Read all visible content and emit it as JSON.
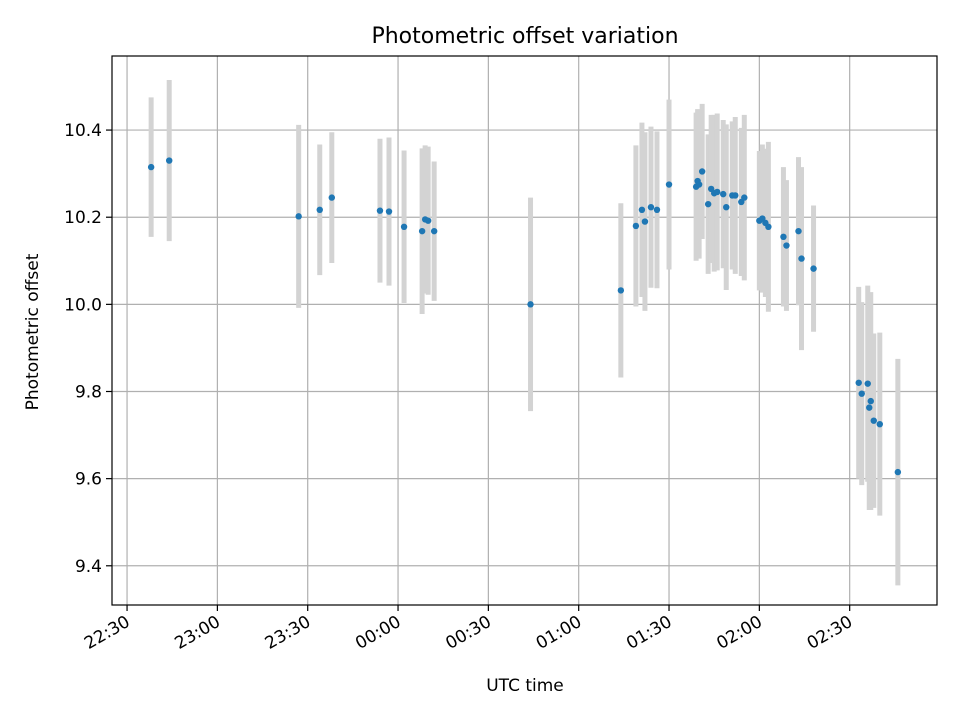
{
  "chart_data": {
    "type": "scatter",
    "title": "Photometric offset variation",
    "xlabel": "UTC time",
    "ylabel": "Photometric offset",
    "x_tick_labels": [
      "22:30",
      "23:00",
      "23:30",
      "00:00",
      "00:30",
      "01:00",
      "01:30",
      "02:00",
      "02:30"
    ],
    "y_ticks": [
      9.4,
      9.6,
      9.8,
      10.0,
      10.2,
      10.4
    ],
    "y_tick_labels": [
      "9.4",
      "9.6",
      "9.8",
      "10.0",
      "10.2",
      "10.4"
    ],
    "xlim": [
      "22:25",
      "02:59"
    ],
    "ylim": [
      9.31,
      10.57
    ],
    "grid": true,
    "colors": {
      "point": "#1f77b4",
      "errorbar": "#d3d3d3",
      "grid": "#b0b0b0",
      "axes": "#000000"
    },
    "series": [
      {
        "x": [
          "22:38",
          "22:44",
          "23:27",
          "23:34",
          "23:38",
          "23:54",
          "23:57",
          "00:02",
          "00:08",
          "00:09",
          "00:10",
          "00:12",
          "00:44",
          "01:14",
          "01:19",
          "01:21",
          "01:22",
          "01:24",
          "01:26",
          "01:30",
          "01:39",
          "01:39.5",
          "01:40",
          "01:41",
          "01:43",
          "01:44",
          "01:45",
          "01:46",
          "01:48",
          "01:49",
          "01:51",
          "01:52",
          "01:54",
          "01:55",
          "02:00",
          "02:01",
          "02:02",
          "02:03",
          "02:08",
          "02:09",
          "02:13",
          "02:14",
          "02:18",
          "02:33",
          "02:34",
          "02:36",
          "02:36.5",
          "02:37",
          "02:38",
          "02:40",
          "02:46"
        ],
        "y": [
          10.315,
          10.33,
          10.202,
          10.217,
          10.245,
          10.215,
          10.213,
          10.178,
          10.168,
          10.195,
          10.192,
          10.168,
          10.0,
          10.032,
          10.18,
          10.217,
          10.19,
          10.223,
          10.217,
          10.275,
          10.27,
          10.283,
          10.275,
          10.305,
          10.23,
          10.265,
          10.255,
          10.258,
          10.253,
          10.223,
          10.25,
          10.25,
          10.235,
          10.245,
          10.192,
          10.197,
          10.187,
          10.178,
          10.155,
          10.135,
          10.168,
          10.105,
          10.082,
          9.82,
          9.795,
          9.818,
          9.763,
          9.778,
          9.733,
          9.725,
          9.615
        ],
        "err": [
          0.16,
          0.185,
          0.21,
          0.15,
          0.15,
          0.165,
          0.17,
          0.175,
          0.19,
          0.17,
          0.17,
          0.16,
          0.245,
          0.2,
          0.185,
          0.2,
          0.205,
          0.185,
          0.18,
          0.195,
          0.17,
          0.165,
          0.17,
          0.155,
          0.16,
          0.17,
          0.18,
          0.18,
          0.17,
          0.19,
          0.17,
          0.18,
          0.17,
          0.19,
          0.16,
          0.17,
          0.17,
          0.195,
          0.16,
          0.15,
          0.17,
          0.21,
          0.145,
          0.22,
          0.21,
          0.225,
          0.235,
          0.25,
          0.2,
          0.21,
          0.26
        ]
      }
    ]
  }
}
